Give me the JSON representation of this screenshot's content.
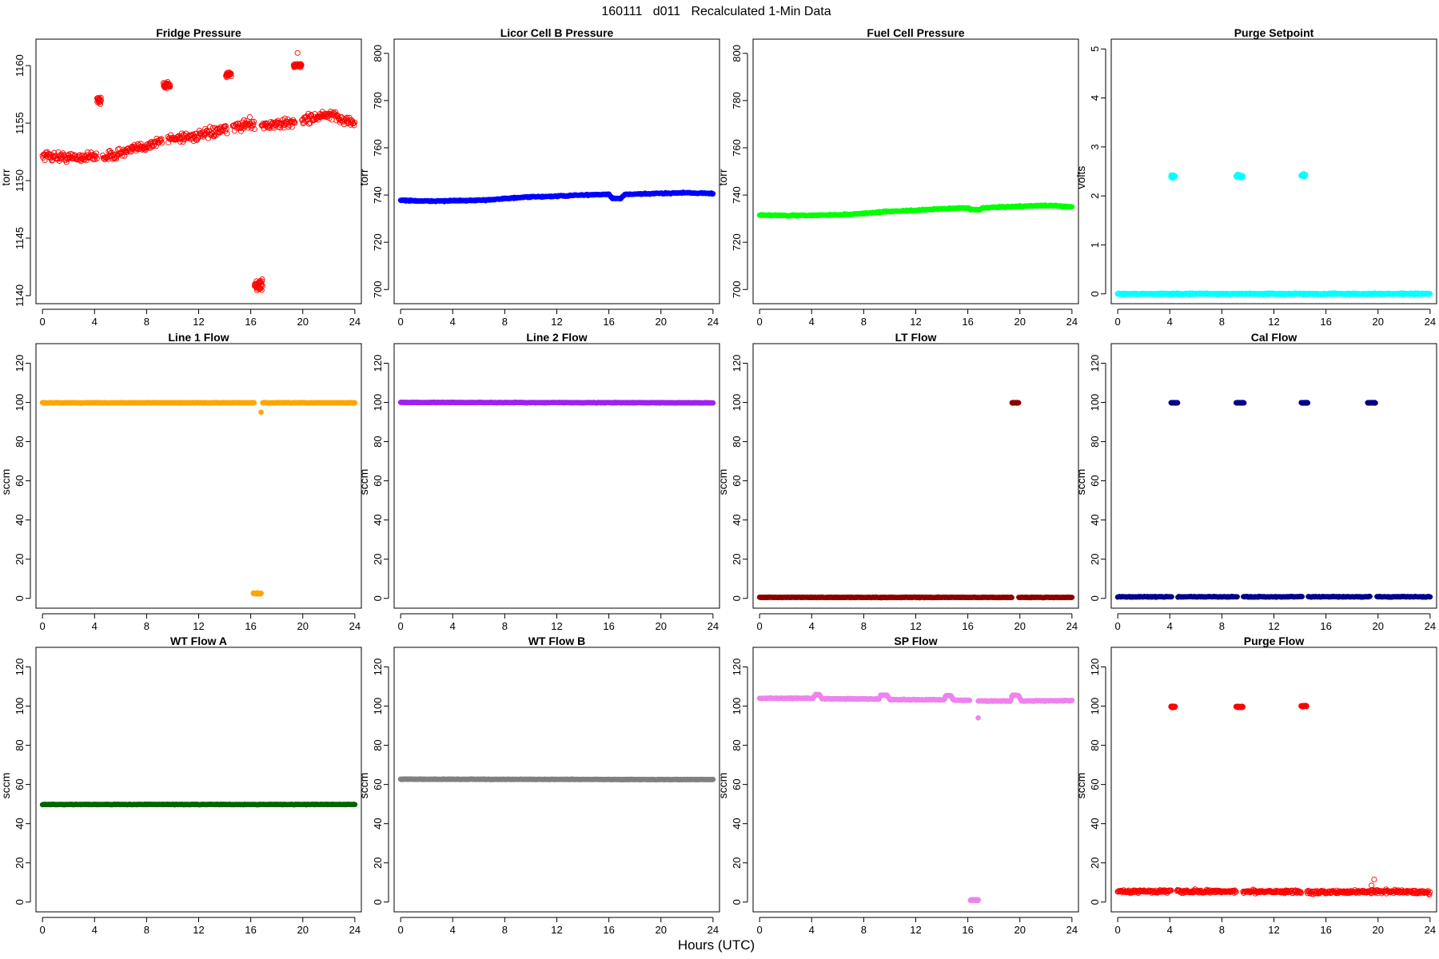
{
  "figure": {
    "title": "160111   d011   Recalculated 1-Min Data",
    "xlabel": "Hours (UTC)"
  },
  "chart_data": [
    {
      "type": "scatter",
      "title": "Fridge Pressure",
      "xlabel": "",
      "ylabel": "torr",
      "color": "#ff0000",
      "marker": "open-circle",
      "xlim": [
        -0.5,
        24.5
      ],
      "ylim": [
        1139.3,
        1162.3
      ],
      "xticks": [
        0,
        4,
        8,
        12,
        16,
        20,
        24
      ],
      "yticks": [
        1140,
        1145,
        1150,
        1155,
        1160
      ],
      "series": [
        {
          "kind": "trend",
          "points": [
            [
              0,
              1152.2
            ],
            [
              2,
              1152.0
            ],
            [
              4,
              1152.1
            ],
            [
              5,
              1152.1
            ],
            [
              7,
              1152.7
            ],
            [
              9,
              1153.4
            ],
            [
              10,
              1153.7
            ],
            [
              12,
              1153.9
            ],
            [
              14,
              1154.4
            ],
            [
              16,
              1155.0
            ],
            [
              17.2,
              1154.8
            ],
            [
              19,
              1155.0
            ],
            [
              20,
              1155.3
            ],
            [
              22,
              1155.7
            ],
            [
              24,
              1155.0
            ]
          ],
          "spread": 0.7,
          "gaps": [
            [
              4.2,
              4.6
            ],
            [
              9.2,
              9.6
            ],
            [
              14.2,
              14.6
            ],
            [
              16.3,
              16.8
            ],
            [
              19.4,
              19.9
            ]
          ]
        },
        {
          "kind": "cluster",
          "x": [
            4.2,
            4.5
          ],
          "y": 1157.0,
          "spread": 0.5
        },
        {
          "kind": "cluster",
          "x": [
            9.3,
            9.8
          ],
          "y": 1158.3,
          "spread": 0.5
        },
        {
          "kind": "cluster",
          "x": [
            14.1,
            14.5
          ],
          "y": 1159.2,
          "spread": 0.4
        },
        {
          "kind": "cluster",
          "x": [
            16.3,
            16.9
          ],
          "y": 1140.9,
          "spread": 0.7
        },
        {
          "kind": "cluster",
          "x": [
            19.3,
            19.9
          ],
          "y": 1160.0,
          "spread": 0.3
        },
        {
          "kind": "points",
          "points": [
            [
              19.6,
              1161.1
            ]
          ]
        }
      ]
    },
    {
      "type": "scatter",
      "title": "Licor Cell B Pressure",
      "xlabel": "",
      "ylabel": "torr",
      "color": "#0000ff",
      "marker": "filled-circle",
      "xlim": [
        -0.5,
        24.5
      ],
      "ylim": [
        694,
        806
      ],
      "xticks": [
        0,
        4,
        8,
        12,
        16,
        20,
        24
      ],
      "yticks": [
        700,
        720,
        740,
        760,
        780,
        800
      ],
      "series": [
        {
          "kind": "trend",
          "points": [
            [
              0,
              737.8
            ],
            [
              2,
              737.4
            ],
            [
              4,
              737.6
            ],
            [
              6,
              737.7
            ],
            [
              8,
              738.5
            ],
            [
              10,
              739.2
            ],
            [
              12,
              739.5
            ],
            [
              14,
              740.0
            ],
            [
              16,
              740.3
            ],
            [
              16.3,
              738.5
            ],
            [
              16.9,
              738.5
            ],
            [
              17.2,
              740.2
            ],
            [
              20,
              740.7
            ],
            [
              22,
              741.0
            ],
            [
              24,
              740.6
            ]
          ],
          "spread": 0.4
        }
      ]
    },
    {
      "type": "scatter",
      "title": "Fuel Cell Pressure",
      "xlabel": "",
      "ylabel": "torr",
      "color": "#00ff00",
      "marker": "filled-circle",
      "xlim": [
        -0.5,
        24.5
      ],
      "ylim": [
        694,
        806
      ],
      "xticks": [
        0,
        4,
        8,
        12,
        16,
        20,
        24
      ],
      "yticks": [
        700,
        720,
        740,
        760,
        780,
        800
      ],
      "series": [
        {
          "kind": "trend",
          "points": [
            [
              0,
              731.6
            ],
            [
              2,
              731.3
            ],
            [
              4,
              731.4
            ],
            [
              6,
              731.6
            ],
            [
              8,
              732.2
            ],
            [
              10,
              733.1
            ],
            [
              12,
              733.5
            ],
            [
              14,
              734.2
            ],
            [
              16,
              734.6
            ],
            [
              16.3,
              733.8
            ],
            [
              16.9,
              733.8
            ],
            [
              17.2,
              734.6
            ],
            [
              20,
              735.2
            ],
            [
              22,
              735.6
            ],
            [
              24,
              735.0
            ]
          ],
          "spread": 0.4
        }
      ]
    },
    {
      "type": "scatter",
      "title": "Purge Setpoint",
      "xlabel": "",
      "ylabel": "volts",
      "color": "#00ffff",
      "marker": "open-circle",
      "xlim": [
        -0.5,
        24.5
      ],
      "ylim": [
        -0.2,
        5.2
      ],
      "xticks": [
        0,
        4,
        8,
        12,
        16,
        20,
        24
      ],
      "yticks": [
        0,
        1,
        2,
        3,
        4,
        5
      ],
      "series": [
        {
          "kind": "trend",
          "points": [
            [
              0,
              0
            ],
            [
              24,
              0
            ]
          ],
          "spread": 0.02
        },
        {
          "kind": "cluster",
          "x": [
            4.1,
            4.4
          ],
          "y": 2.4,
          "spread": 0.06
        },
        {
          "kind": "cluster",
          "x": [
            9.1,
            9.6
          ],
          "y": 2.4,
          "spread": 0.06
        },
        {
          "kind": "cluster",
          "x": [
            14.1,
            14.4
          ],
          "y": 2.42,
          "spread": 0.05
        }
      ]
    },
    {
      "type": "scatter",
      "title": "Line 1 Flow",
      "xlabel": "",
      "ylabel": "sccm",
      "color": "#ffa500",
      "marker": "filled-circle",
      "xlim": [
        -0.5,
        24.5
      ],
      "ylim": [
        -5,
        130
      ],
      "xticks": [
        0,
        4,
        8,
        12,
        16,
        20,
        24
      ],
      "yticks": [
        0,
        20,
        40,
        60,
        80,
        100,
        120
      ],
      "series": [
        {
          "kind": "trend",
          "points": [
            [
              0,
              99.8
            ],
            [
              24,
              99.8
            ]
          ],
          "spread": 0.2,
          "gaps": [
            [
              16.3,
              16.9
            ]
          ]
        },
        {
          "kind": "cluster",
          "x": [
            16.2,
            16.8
          ],
          "y": 2.5,
          "spread": 0.4
        },
        {
          "kind": "points",
          "points": [
            [
              16.8,
              95.0
            ]
          ]
        }
      ]
    },
    {
      "type": "scatter",
      "title": "Line 2 Flow",
      "xlabel": "",
      "ylabel": "sccm",
      "color": "#a020f0",
      "marker": "filled-circle",
      "xlim": [
        -0.5,
        24.5
      ],
      "ylim": [
        -5,
        130
      ],
      "xticks": [
        0,
        4,
        8,
        12,
        16,
        20,
        24
      ],
      "yticks": [
        0,
        20,
        40,
        60,
        80,
        100,
        120
      ],
      "series": [
        {
          "kind": "trend",
          "points": [
            [
              0,
              100.0
            ],
            [
              24,
              99.8
            ]
          ],
          "spread": 0.2
        }
      ]
    },
    {
      "type": "scatter",
      "title": "LT Flow",
      "xlabel": "",
      "ylabel": "sccm",
      "color": "#8b0000",
      "marker": "filled-circle",
      "xlim": [
        -0.5,
        24.5
      ],
      "ylim": [
        -5,
        130
      ],
      "xticks": [
        0,
        4,
        8,
        12,
        16,
        20,
        24
      ],
      "yticks": [
        0,
        20,
        40,
        60,
        80,
        100,
        120
      ],
      "series": [
        {
          "kind": "trend",
          "points": [
            [
              0,
              0.5
            ],
            [
              24,
              0.5
            ]
          ],
          "spread": 0.25,
          "gaps": [
            [
              19.4,
              19.9
            ]
          ]
        },
        {
          "kind": "cluster",
          "x": [
            19.4,
            19.9
          ],
          "y": 99.8,
          "spread": 0.3
        }
      ]
    },
    {
      "type": "scatter",
      "title": "Cal Flow",
      "xlabel": "",
      "ylabel": "sccm",
      "color": "#00008b",
      "marker": "filled-circle",
      "xlim": [
        -0.5,
        24.5
      ],
      "ylim": [
        -5,
        130
      ],
      "xticks": [
        0,
        4,
        8,
        12,
        16,
        20,
        24
      ],
      "yticks": [
        0,
        20,
        40,
        60,
        80,
        100,
        120
      ],
      "series": [
        {
          "kind": "trend",
          "points": [
            [
              0,
              0.8
            ],
            [
              24,
              0.8
            ]
          ],
          "spread": 0.3,
          "gaps": [
            [
              4.2,
              4.6
            ],
            [
              9.2,
              9.6
            ],
            [
              14.2,
              14.6
            ],
            [
              19.4,
              19.9
            ]
          ]
        },
        {
          "kind": "cluster",
          "x": [
            4.1,
            4.6
          ],
          "y": 99.8,
          "spread": 0.25
        },
        {
          "kind": "cluster",
          "x": [
            9.1,
            9.7
          ],
          "y": 99.8,
          "spread": 0.25
        },
        {
          "kind": "cluster",
          "x": [
            14.1,
            14.6
          ],
          "y": 99.8,
          "spread": 0.25
        },
        {
          "kind": "cluster",
          "x": [
            19.2,
            19.8
          ],
          "y": 99.8,
          "spread": 0.25
        }
      ]
    },
    {
      "type": "scatter",
      "title": "WT Flow A",
      "xlabel": "",
      "ylabel": "sccm",
      "color": "#006400",
      "marker": "filled-circle",
      "xlim": [
        -0.5,
        24.5
      ],
      "ylim": [
        -5,
        130
      ],
      "xticks": [
        0,
        4,
        8,
        12,
        16,
        20,
        24
      ],
      "yticks": [
        0,
        20,
        40,
        60,
        80,
        100,
        120
      ],
      "series": [
        {
          "kind": "trend",
          "points": [
            [
              0,
              49.8
            ],
            [
              24,
              49.8
            ]
          ],
          "spread": 0.2
        }
      ]
    },
    {
      "type": "scatter",
      "title": "WT Flow B",
      "xlabel": "",
      "ylabel": "sccm",
      "color": "#808080",
      "marker": "filled-circle",
      "xlim": [
        -0.5,
        24.5
      ],
      "ylim": [
        -5,
        130
      ],
      "xticks": [
        0,
        4,
        8,
        12,
        16,
        20,
        24
      ],
      "yticks": [
        0,
        20,
        40,
        60,
        80,
        100,
        120
      ],
      "series": [
        {
          "kind": "trend",
          "points": [
            [
              0,
              62.7
            ],
            [
              24,
              62.5
            ]
          ],
          "spread": 0.2
        }
      ]
    },
    {
      "type": "scatter",
      "title": "SP Flow",
      "xlabel": "",
      "ylabel": "sccm",
      "color": "#ee82ee",
      "marker": "filled-circle",
      "xlim": [
        -0.5,
        24.5
      ],
      "ylim": [
        -5,
        130
      ],
      "xticks": [
        0,
        4,
        8,
        12,
        16,
        20,
        24
      ],
      "yticks": [
        0,
        20,
        40,
        60,
        80,
        100,
        120
      ],
      "series": [
        {
          "kind": "trend",
          "points": [
            [
              0,
              104.0
            ],
            [
              4.1,
              104.0
            ],
            [
              4.3,
              105.8
            ],
            [
              4.6,
              105.8
            ],
            [
              4.8,
              103.8
            ],
            [
              9.2,
              103.6
            ],
            [
              9.3,
              105.6
            ],
            [
              9.8,
              105.6
            ],
            [
              10.0,
              103.3
            ],
            [
              14.2,
              103.2
            ],
            [
              14.3,
              105.4
            ],
            [
              14.7,
              105.4
            ],
            [
              14.9,
              103.0
            ],
            [
              16.2,
              103.0
            ],
            [
              16.8,
              102.6
            ],
            [
              19.3,
              102.6
            ],
            [
              19.4,
              105.5
            ],
            [
              19.9,
              105.5
            ],
            [
              20.1,
              102.6
            ],
            [
              24,
              102.8
            ]
          ],
          "spread": 0.3,
          "gaps": [
            [
              16.2,
              16.8
            ]
          ]
        },
        {
          "kind": "cluster",
          "x": [
            16.2,
            16.8
          ],
          "y": 1.0,
          "spread": 0.4
        },
        {
          "kind": "points",
          "points": [
            [
              16.8,
              94.0
            ]
          ]
        }
      ]
    },
    {
      "type": "scatter",
      "title": "Purge Flow",
      "xlabel": "",
      "ylabel": "sccm",
      "color": "#ff0000",
      "marker": "open-circle",
      "xlim": [
        -0.5,
        24.5
      ],
      "ylim": [
        -5,
        130
      ],
      "xticks": [
        0,
        4,
        8,
        12,
        16,
        20,
        24
      ],
      "yticks": [
        0,
        20,
        40,
        60,
        80,
        100,
        120
      ],
      "series": [
        {
          "kind": "trend",
          "points": [
            [
              0,
              5.5
            ],
            [
              6,
              5.3
            ],
            [
              12,
              5.5
            ],
            [
              16,
              5.0
            ],
            [
              20,
              5.5
            ],
            [
              24,
              5.0
            ]
          ],
          "spread": 1.4,
          "gaps": [
            [
              4.1,
              4.5
            ],
            [
              9.1,
              9.6
            ],
            [
              14.1,
              14.5
            ]
          ]
        },
        {
          "kind": "cluster",
          "x": [
            4.1,
            4.4
          ],
          "y": 99.6,
          "spread": 0.5
        },
        {
          "kind": "cluster",
          "x": [
            9.1,
            9.6
          ],
          "y": 99.6,
          "spread": 0.5
        },
        {
          "kind": "cluster",
          "x": [
            14.1,
            14.5
          ],
          "y": 100.0,
          "spread": 0.5
        },
        {
          "kind": "points",
          "points": [
            [
              19.7,
              11.5
            ],
            [
              19.5,
              8.5
            ]
          ]
        }
      ]
    }
  ]
}
